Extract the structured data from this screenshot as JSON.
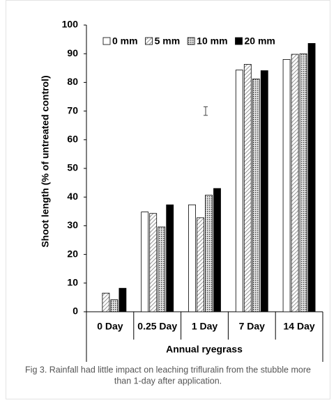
{
  "chart_data": {
    "type": "bar",
    "y_label": "Shoot length (% of untreated control)",
    "x_label": "Annual ryegrass",
    "caption": [
      "Fig 3. Rainfall had little impact on leaching trifluralin from the stubble more",
      "than 1-day after application."
    ],
    "categories": [
      "0 Day",
      "0.25 Day",
      "1 Day",
      "7 Day",
      "14 Day"
    ],
    "series": [
      {
        "name": "0 mm",
        "color": "#ffffff",
        "pattern": "none",
        "values": [
          0,
          34.8,
          37.3,
          84.3,
          88.0
        ]
      },
      {
        "name": "5 mm",
        "color": "#d0d0d0",
        "pattern": "hatch",
        "values": [
          6.5,
          34.3,
          32.8,
          86.3,
          89.8
        ]
      },
      {
        "name": "10 mm",
        "color": "#b0b0b0",
        "pattern": "dots",
        "values": [
          4.2,
          29.6,
          40.7,
          81.2,
          90.0
        ]
      },
      {
        "name": "20 mm",
        "color": "#000000",
        "pattern": "none",
        "values": [
          8.2,
          37.3,
          43.0,
          84.1,
          93.6
        ]
      }
    ],
    "error_bar": [
      68.5,
      71.5
    ],
    "ylim": [
      0,
      100
    ],
    "yticks": [
      0,
      10,
      20,
      30,
      40,
      50,
      60,
      70,
      80,
      90,
      100
    ],
    "legend": "top"
  }
}
